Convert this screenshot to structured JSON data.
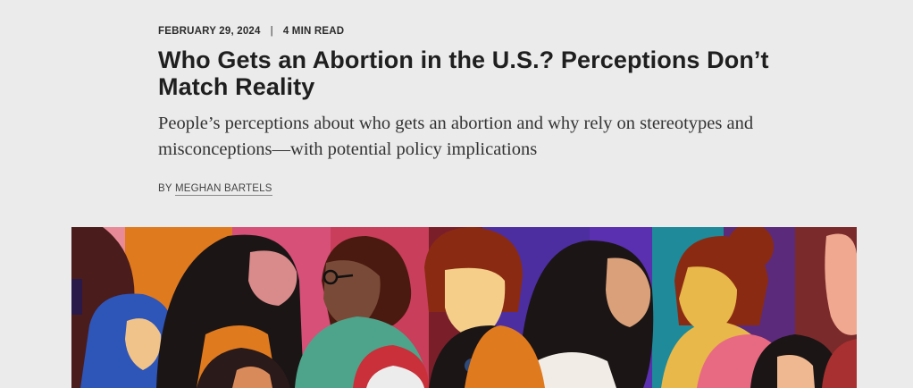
{
  "article": {
    "date": "FEBRUARY 29, 2024",
    "separator": "|",
    "read_time": "4 MIN READ",
    "headline": "Who Gets an Abortion in the U.S.? Perceptions Don’t Match Reality",
    "dek": "People’s perceptions about who gets an abortion and why rely on stereotypes and misconceptions—with potential policy implications",
    "byline_prefix": "BY",
    "author": "MEGHAN BARTELS"
  },
  "hero_image": {
    "subject": "illustration-of-diverse-women",
    "colors": {
      "orange": "#e07a1f",
      "pink": "#d9456e",
      "purple": "#4c2ea0",
      "teal": "#1e8a9a",
      "black": "#1b1515",
      "rust": "#8b2a12"
    }
  }
}
